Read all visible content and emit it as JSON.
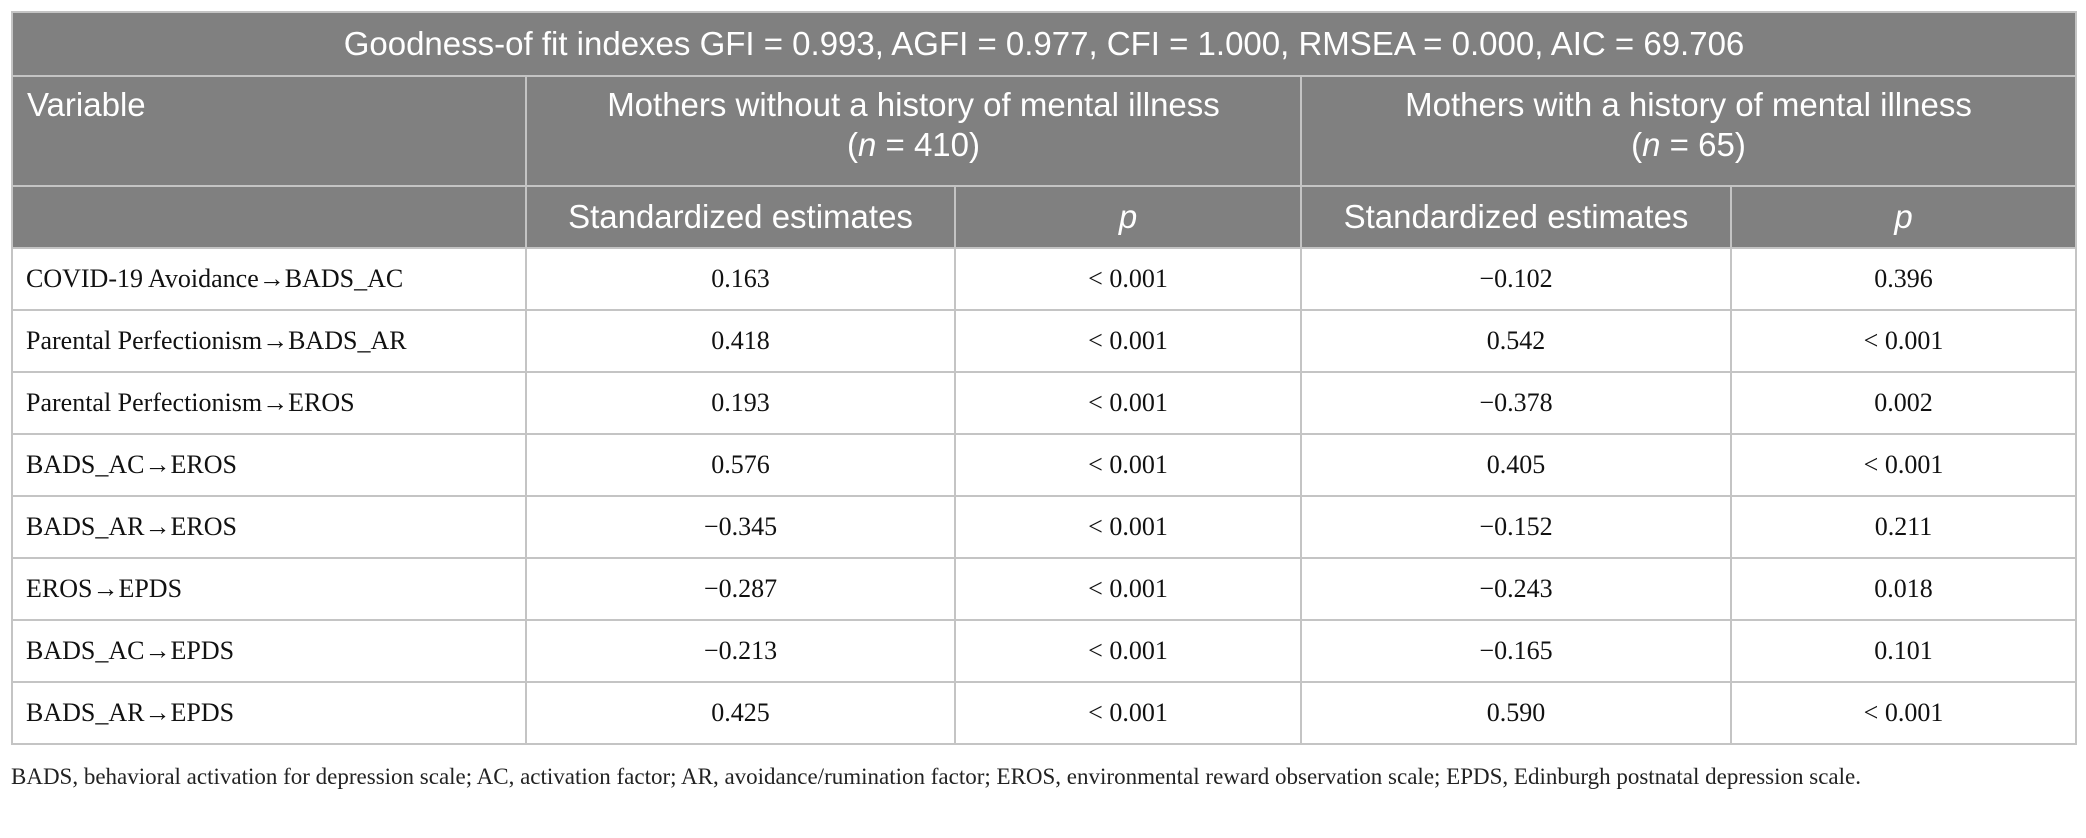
{
  "table": {
    "title": "Goodness-of fit indexes GFI = 0.993, AGFI = 0.977, CFI = 1.000, RMSEA = 0.000, AIC = 69.706",
    "variable_header": "Variable",
    "groups": [
      {
        "label": "Mothers without a history of mental illness",
        "n": [
          "(",
          "n",
          " = 410)"
        ]
      },
      {
        "label": "Mothers with a history of mental illness",
        "n": [
          "(",
          "n",
          " = 65)"
        ]
      }
    ],
    "subheaders": [
      "Standardized estimates",
      "p",
      "Standardized estimates",
      "p"
    ],
    "rows": [
      [
        "COVID-19 Avoidance→BADS_AC",
        "0.163",
        "< 0.001",
        "−0.102",
        "0.396"
      ],
      [
        "Parental Perfectionism→BADS_AR",
        "0.418",
        "< 0.001",
        "0.542",
        "< 0.001"
      ],
      [
        "Parental Perfectionism→EROS",
        "0.193",
        "< 0.001",
        "−0.378",
        "0.002"
      ],
      [
        "BADS_AC→EROS",
        "0.576",
        "< 0.001",
        "0.405",
        "< 0.001"
      ],
      [
        "BADS_AR→EROS",
        "−0.345",
        "< 0.001",
        "−0.152",
        "0.211"
      ],
      [
        "EROS→EPDS",
        "−0.287",
        "< 0.001",
        "−0.243",
        "0.018"
      ],
      [
        "BADS_AC→EPDS",
        "−0.213",
        "< 0.001",
        "−0.165",
        "0.101"
      ],
      [
        "BADS_AR→EPDS",
        "0.425",
        "< 0.001",
        "0.590",
        "< 0.001"
      ]
    ]
  },
  "footnote": "BADS, behavioral activation for depression scale; AC, activation factor; AR, avoidance/rumination factor; EROS, environmental reward observation scale; EPDS, Edinburgh postnatal depression scale."
}
